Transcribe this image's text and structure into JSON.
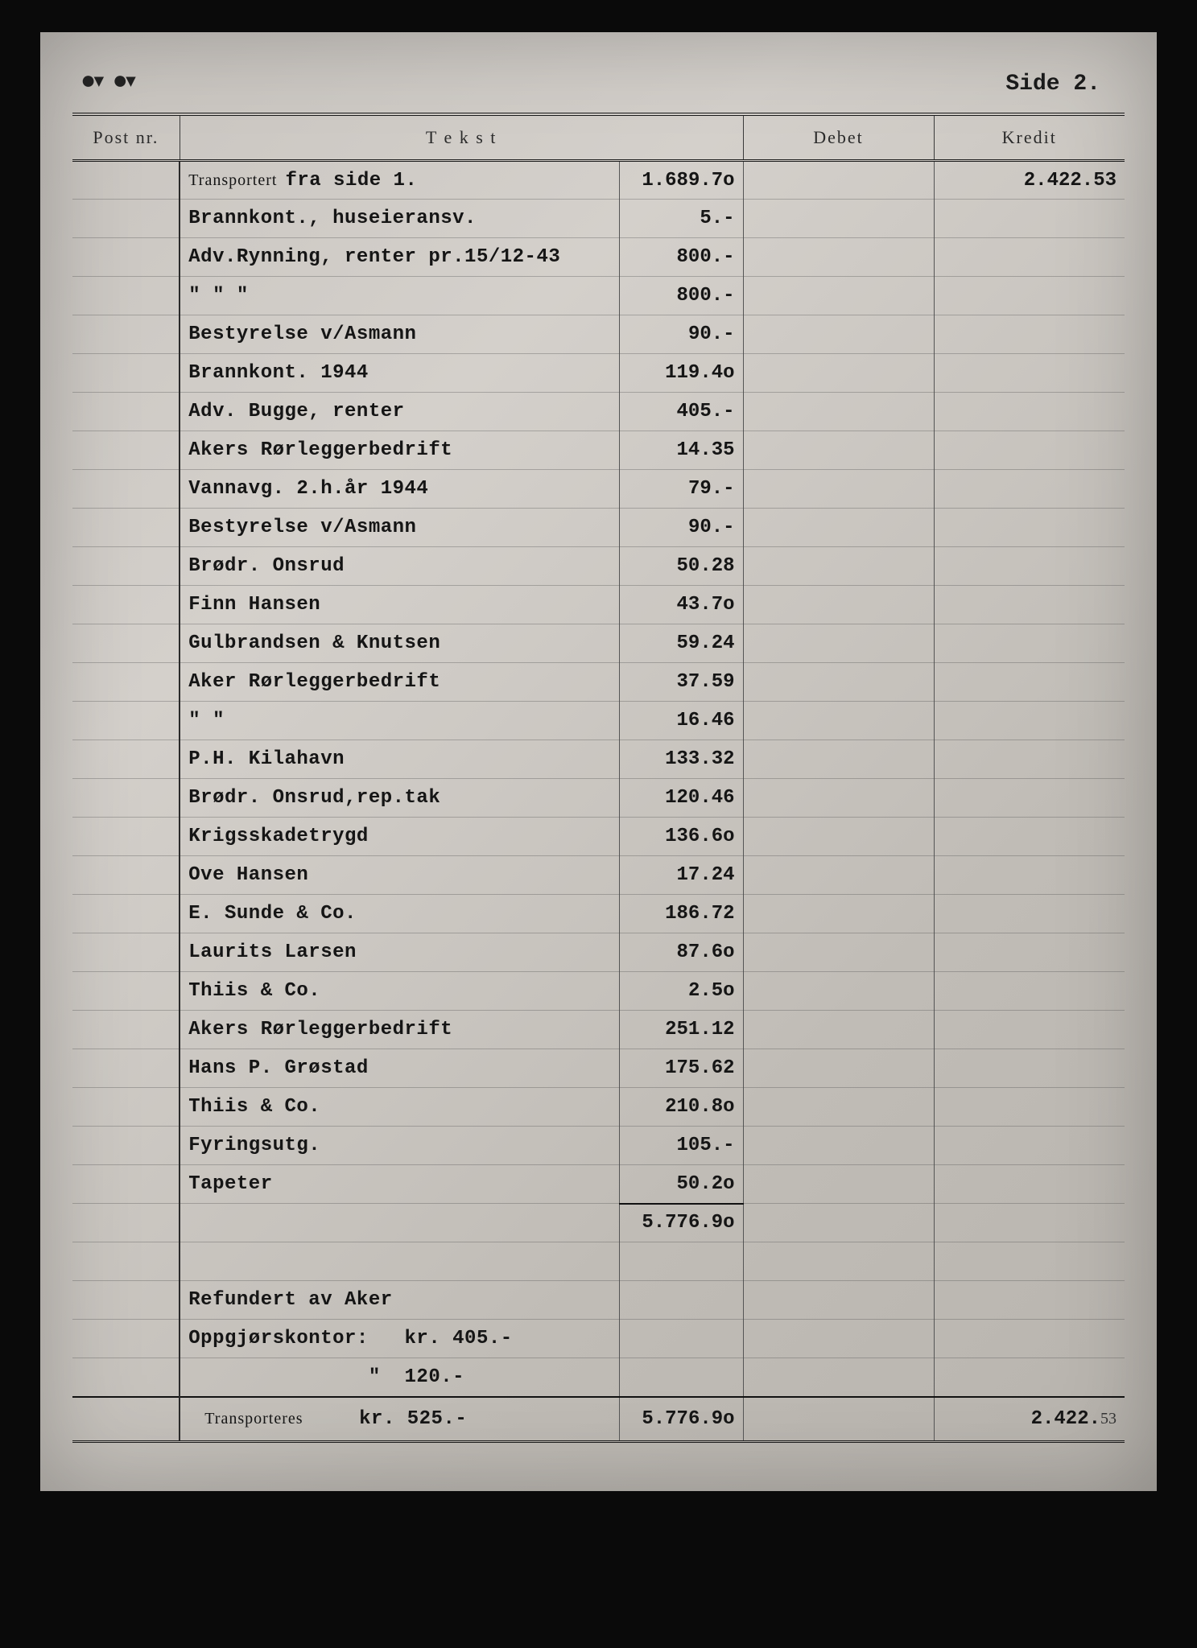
{
  "page_label": "Side 2.",
  "headers": {
    "post": "Post nr.",
    "tekst": "T e k s t",
    "debet": "Debet",
    "kredit": "Kredit"
  },
  "transport_label": "Transportert",
  "transport_typed": "fra side 1.",
  "transport_amount": "1.689.7o",
  "transport_kredit": "2.422.53",
  "rows": [
    {
      "tekst": "Brannkont., huseieransv.",
      "amt": "5.-"
    },
    {
      "tekst": "Adv.Rynning, renter pr.15/12-43",
      "amt": "800.-"
    },
    {
      "tekst": "\"        \"        \"",
      "amt": "800.-"
    },
    {
      "tekst": "Bestyrelse v/Asmann",
      "amt": "90.-"
    },
    {
      "tekst": "Brannkont. 1944",
      "amt": "119.4o"
    },
    {
      "tekst": "Adv. Bugge, renter",
      "amt": "405.-"
    },
    {
      "tekst": "Akers Rørleggerbedrift",
      "amt": "14.35"
    },
    {
      "tekst": "Vannavg. 2.h.år 1944",
      "amt": "79.-"
    },
    {
      "tekst": "Bestyrelse v/Asmann",
      "amt": "90.-"
    },
    {
      "tekst": "Brødr. Onsrud",
      "amt": "50.28"
    },
    {
      "tekst": "Finn Hansen",
      "amt": "43.7o"
    },
    {
      "tekst": "Gulbrandsen & Knutsen",
      "amt": "59.24"
    },
    {
      "tekst": "Aker Rørleggerbedrift",
      "amt": "37.59"
    },
    {
      "tekst": "\"        \"",
      "amt": "16.46"
    },
    {
      "tekst": "P.H. Kilahavn",
      "amt": "133.32"
    },
    {
      "tekst": "Brødr. Onsrud,rep.tak",
      "amt": "120.46"
    },
    {
      "tekst": "Krigsskadetrygd",
      "amt": "136.6o"
    },
    {
      "tekst": "Ove Hansen",
      "amt": "17.24"
    },
    {
      "tekst": "E. Sunde & Co.",
      "amt": "186.72"
    },
    {
      "tekst": "Laurits Larsen",
      "amt": "87.6o"
    },
    {
      "tekst": "Thiis & Co.",
      "amt": "2.5o"
    },
    {
      "tekst": "Akers Rørleggerbedrift",
      "amt": "251.12"
    },
    {
      "tekst": "Hans P. Grøstad",
      "amt": "175.62"
    },
    {
      "tekst": "Thiis & Co.",
      "amt": "210.8o"
    },
    {
      "tekst": "Fyringsutg.",
      "amt": "105.-"
    },
    {
      "tekst": "Tapeter",
      "amt": "50.2o"
    }
  ],
  "subtotal": "5.776.9o",
  "refund_lines": [
    "Refundert av Aker",
    "Oppgjørskontor:   kr. 405.-",
    "               \"  120.-"
  ],
  "final_label": "Transporteres",
  "final_tekst_extra": "kr. 525.-",
  "final_amount": "5.776.9o",
  "final_kredit": "2.422.",
  "final_kredit_hand": "53"
}
